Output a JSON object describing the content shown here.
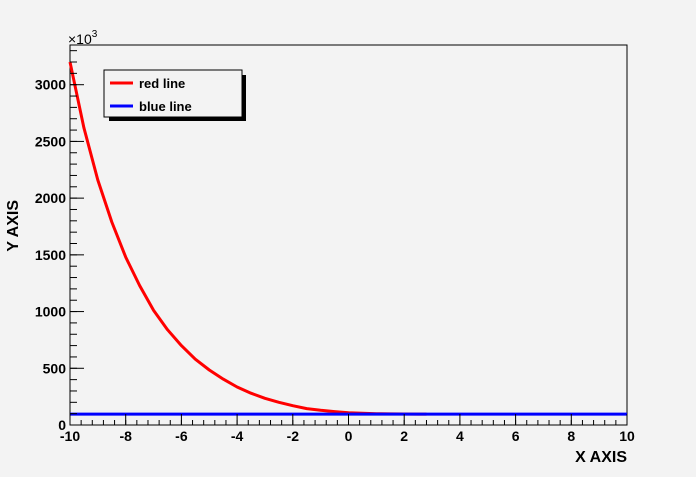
{
  "chart_data": {
    "type": "line",
    "title": "",
    "xlabel": "X AXIS",
    "ylabel": "Y AXIS",
    "y_multiplier_label": "×10",
    "y_multiplier_exp": "3",
    "xlim": [
      -10,
      10
    ],
    "ylim": [
      0,
      3350
    ],
    "x_ticks": [
      -10,
      -8,
      -6,
      -4,
      -2,
      0,
      2,
      4,
      6,
      8,
      10
    ],
    "x_tick_labels": [
      "-10",
      "-8",
      "-6",
      "-4",
      "-2",
      "0",
      "2",
      "4",
      "6",
      "8",
      "10"
    ],
    "y_ticks": [
      0,
      500,
      1000,
      1500,
      2000,
      2500,
      3000
    ],
    "y_tick_labels": [
      "0",
      "500",
      "1000",
      "1500",
      "2000",
      "2500",
      "3000"
    ],
    "legend_position": "top-left",
    "series": [
      {
        "name": "red line",
        "color": "#ff0000",
        "x": [
          -10,
          -9.5,
          -9,
          -8.5,
          -8,
          -7.5,
          -7,
          -6.5,
          -6,
          -5.5,
          -5,
          -4.5,
          -4,
          -3.5,
          -3,
          -2.5,
          -2,
          -1.5,
          -1,
          -0.5,
          0,
          0.5,
          1,
          1.5,
          2,
          2.5,
          2.8
        ],
        "y": [
          3200,
          2620,
          2160,
          1790,
          1480,
          1230,
          1010,
          840,
          700,
          580,
          485,
          405,
          335,
          280,
          235,
          200,
          170,
          145,
          130,
          118,
          108,
          103,
          100,
          98,
          97,
          96,
          96
        ]
      },
      {
        "name": "blue line",
        "color": "#0000ff",
        "x": [
          -10,
          10
        ],
        "y": [
          96,
          96
        ]
      }
    ]
  }
}
